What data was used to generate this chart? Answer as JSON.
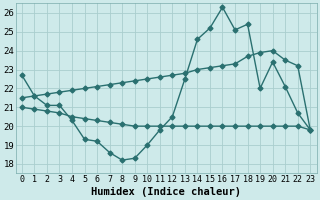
{
  "xlabel": "Humidex (Indice chaleur)",
  "ylabel": "",
  "background_color": "#ceeaea",
  "grid_color": "#aacece",
  "line_color": "#2a7070",
  "xlim": [
    -0.5,
    23.5
  ],
  "ylim": [
    17.5,
    26.5
  ],
  "yticks": [
    18,
    19,
    20,
    21,
    22,
    23,
    24,
    25,
    26
  ],
  "xticks": [
    0,
    1,
    2,
    3,
    4,
    5,
    6,
    7,
    8,
    9,
    10,
    11,
    12,
    13,
    14,
    15,
    16,
    17,
    18,
    19,
    20,
    21,
    22,
    23
  ],
  "line1_x": [
    0,
    1,
    2,
    3,
    4,
    5,
    6,
    7,
    8,
    9,
    10,
    11,
    12,
    13,
    14,
    15,
    16,
    17,
    18,
    19,
    20,
    21,
    22,
    23
  ],
  "line1_y": [
    22.7,
    21.6,
    21.1,
    21.1,
    20.3,
    19.3,
    19.2,
    18.6,
    18.2,
    18.3,
    19.0,
    19.8,
    20.5,
    22.5,
    24.6,
    25.2,
    26.3,
    25.1,
    25.4,
    22.0,
    23.4,
    22.1,
    20.7,
    19.8
  ],
  "line2_x": [
    0,
    1,
    2,
    3,
    4,
    5,
    6,
    7,
    8,
    9,
    10,
    11,
    12,
    13,
    14,
    15,
    16,
    17,
    18,
    19,
    20,
    21,
    22,
    23
  ],
  "line2_y": [
    21.0,
    20.9,
    20.8,
    20.7,
    20.5,
    20.4,
    20.3,
    20.2,
    20.1,
    20.0,
    20.0,
    20.0,
    20.0,
    20.0,
    20.0,
    20.0,
    20.0,
    20.0,
    20.0,
    20.0,
    20.0,
    20.0,
    20.0,
    19.8
  ],
  "line3_x": [
    0,
    1,
    2,
    3,
    4,
    5,
    6,
    7,
    8,
    9,
    10,
    11,
    12,
    13,
    14,
    15,
    16,
    17,
    18,
    19,
    20,
    21,
    22,
    23
  ],
  "line3_y": [
    21.5,
    21.6,
    21.7,
    21.8,
    21.9,
    22.0,
    22.1,
    22.2,
    22.3,
    22.4,
    22.5,
    22.6,
    22.7,
    22.8,
    23.0,
    23.1,
    23.2,
    23.3,
    23.7,
    23.9,
    24.0,
    23.5,
    23.2,
    19.8
  ],
  "marker": "D",
  "markersize": 2.5,
  "linewidth": 1.0,
  "font_size": 7.5
}
